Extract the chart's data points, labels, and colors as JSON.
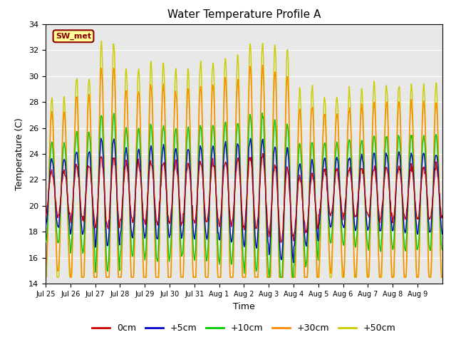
{
  "title": "Water Temperature Profile A",
  "xlabel": "Time",
  "ylabel": "Temperature (C)",
  "ylim": [
    14,
    34
  ],
  "yticks": [
    14,
    16,
    18,
    20,
    22,
    24,
    26,
    28,
    30,
    32,
    34
  ],
  "bg_color": "#e8e8e8",
  "legend_label": "SW_met",
  "legend_box_facecolor": "#ffff99",
  "legend_box_edgecolor": "#8b0000",
  "lines": {
    "0cm": {
      "color": "#cc0000",
      "label": "0cm"
    },
    "+5cm": {
      "color": "#0000cc",
      "label": "+5cm"
    },
    "+10cm": {
      "color": "#00cc00",
      "label": "+10cm"
    },
    "+30cm": {
      "color": "#ff8800",
      "label": "+30cm"
    },
    "+50cm": {
      "color": "#cccc00",
      "label": "+50cm"
    }
  },
  "xtick_labels": [
    "Jul 25",
    "Jul 26",
    "Jul 27",
    "Jul 28",
    "Jul 29",
    "Jul 30",
    "Jul 31",
    "Aug 1",
    "Aug 2",
    "Aug 3",
    "Aug 4",
    "Aug 5",
    "Aug 6",
    "Aug 7",
    "Aug 8",
    "Aug 9"
  ],
  "n_per_day": 48,
  "n_days": 16
}
